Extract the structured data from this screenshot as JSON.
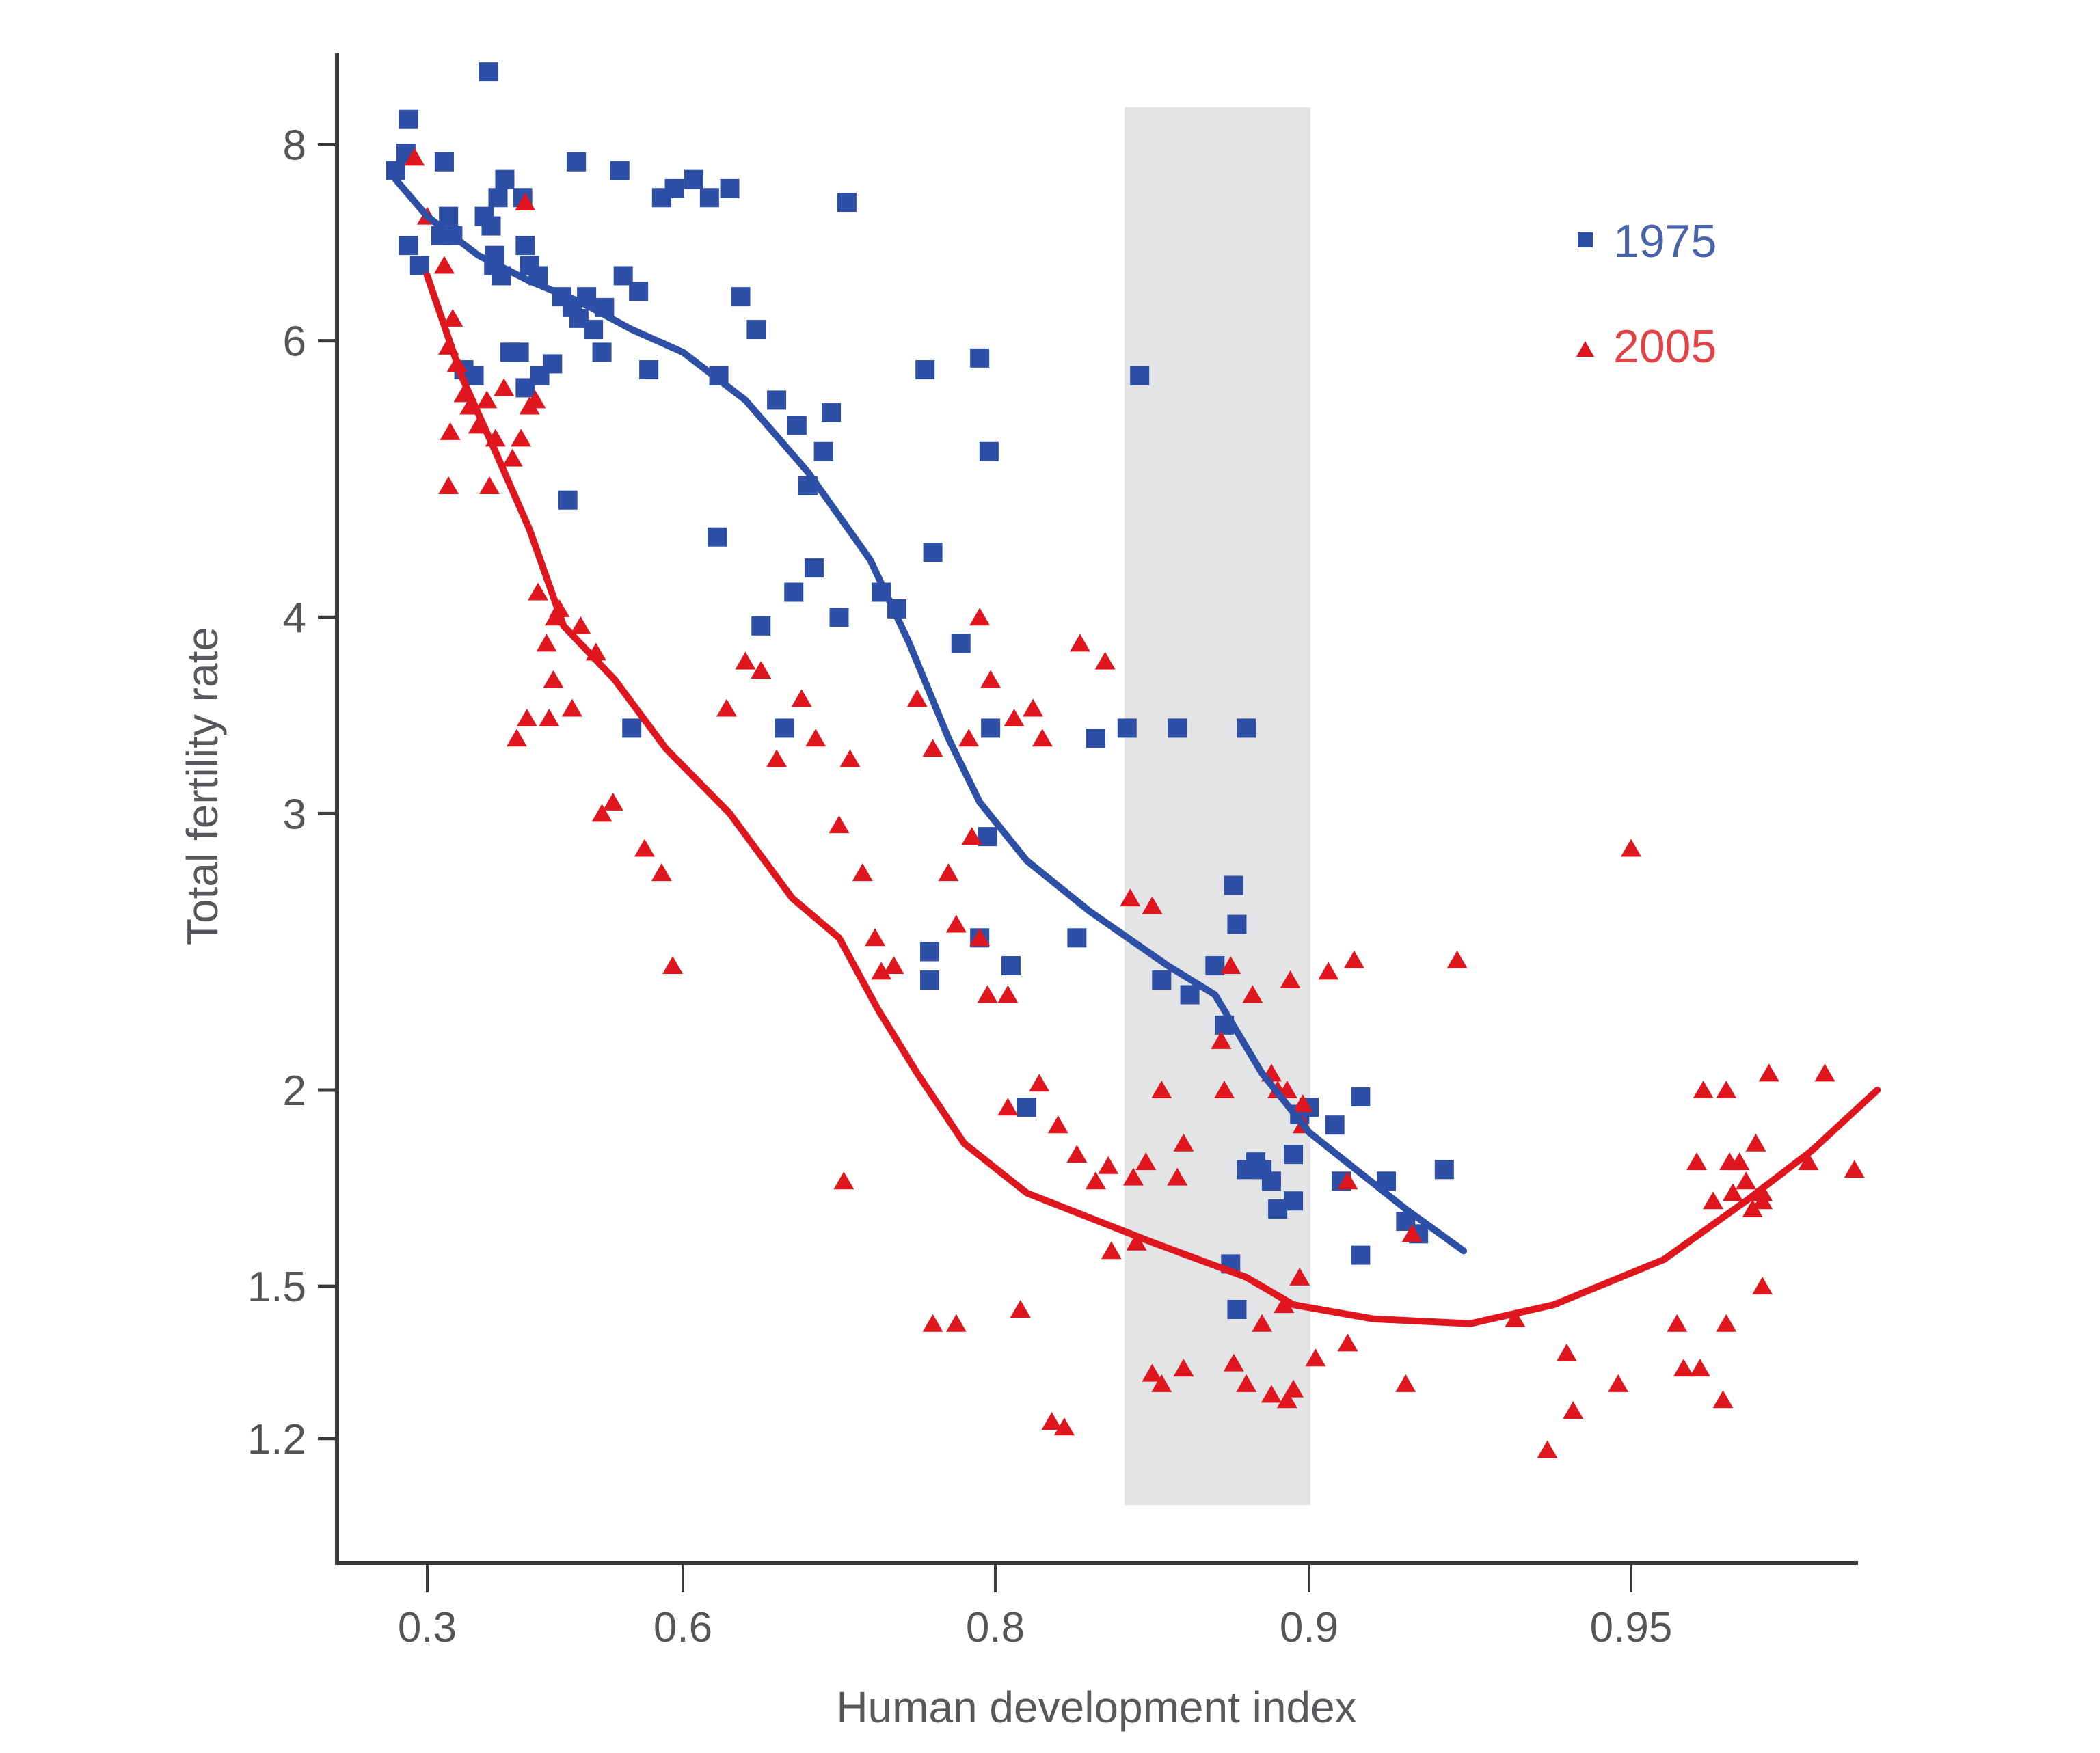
{
  "chart_data": {
    "type": "scatter",
    "title": "",
    "xlabel": "Human development index",
    "ylabel": "Total fertility rate",
    "x_ticks": [
      0.3,
      0.6,
      0.8,
      0.9,
      0.95
    ],
    "x_tick_labels": [
      "0.3",
      "0.6",
      "0.8",
      "0.9",
      "0.95"
    ],
    "x_scale": "custom (non-uniform tick spacing)",
    "y_ticks": [
      1.2,
      1.5,
      2,
      3,
      4,
      6,
      8
    ],
    "y_tick_labels": [
      "1.2",
      "1.5",
      "2",
      "3",
      "4",
      "6",
      "8"
    ],
    "y_scale": "log",
    "ylim": [
      1.0,
      9.0
    ],
    "grid": false,
    "legend_position": "top-right",
    "shaded_band": {
      "x_range": [
        0.85,
        0.9
      ],
      "y_range": [
        1.1,
        8.8
      ],
      "color": "#e3e4e6"
    },
    "series": [
      {
        "name": "1975",
        "marker": "square",
        "color": "#2d4fa6",
        "points": [
          [
            0.263,
            7.7
          ],
          [
            0.278,
            8.3
          ],
          [
            0.275,
            7.9
          ],
          [
            0.278,
            6.9
          ],
          [
            0.291,
            6.7
          ],
          [
            0.32,
            7.8
          ],
          [
            0.325,
            7.2
          ],
          [
            0.316,
            7.0
          ],
          [
            0.372,
            8.9
          ],
          [
            0.33,
            7.0
          ],
          [
            0.343,
            5.75
          ],
          [
            0.355,
            5.7
          ],
          [
            0.367,
            7.2
          ],
          [
            0.375,
            7.1
          ],
          [
            0.379,
            6.8
          ],
          [
            0.383,
            7.4
          ],
          [
            0.391,
            7.6
          ],
          [
            0.412,
            7.4
          ],
          [
            0.378,
            6.7
          ],
          [
            0.387,
            6.6
          ],
          [
            0.397,
            5.9
          ],
          [
            0.408,
            5.9
          ],
          [
            0.415,
            6.9
          ],
          [
            0.42,
            6.7
          ],
          [
            0.43,
            6.6
          ],
          [
            0.415,
            5.6
          ],
          [
            0.432,
            5.7
          ],
          [
            0.447,
            5.8
          ],
          [
            0.475,
            7.8
          ],
          [
            0.458,
            6.4
          ],
          [
            0.47,
            6.3
          ],
          [
            0.478,
            6.2
          ],
          [
            0.487,
            6.4
          ],
          [
            0.495,
            6.1
          ],
          [
            0.508,
            6.3
          ],
          [
            0.526,
            7.7
          ],
          [
            0.505,
            5.9
          ],
          [
            0.53,
            6.6
          ],
          [
            0.548,
            6.45
          ],
          [
            0.56,
            5.75
          ],
          [
            0.575,
            7.4
          ],
          [
            0.59,
            7.5
          ],
          [
            0.607,
            7.6
          ],
          [
            0.617,
            7.4
          ],
          [
            0.63,
            7.5
          ],
          [
            0.623,
            5.7
          ],
          [
            0.637,
            6.4
          ],
          [
            0.647,
            6.1
          ],
          [
            0.66,
            5.5
          ],
          [
            0.673,
            5.3
          ],
          [
            0.69,
            5.1
          ],
          [
            0.695,
            5.4
          ],
          [
            0.68,
            4.85
          ],
          [
            0.705,
            7.35
          ],
          [
            0.622,
            4.5
          ],
          [
            0.465,
            4.75
          ],
          [
            0.65,
            3.95
          ],
          [
            0.671,
            4.15
          ],
          [
            0.684,
            4.3
          ],
          [
            0.7,
            4.0
          ],
          [
            0.727,
            4.15
          ],
          [
            0.737,
            4.05
          ],
          [
            0.76,
            4.4
          ],
          [
            0.755,
            5.75
          ],
          [
            0.79,
            5.85
          ],
          [
            0.796,
            5.1
          ],
          [
            0.846,
            5.7
          ],
          [
            0.54,
            3.4
          ],
          [
            0.665,
            3.4
          ],
          [
            0.778,
            3.85
          ],
          [
            0.797,
            3.4
          ],
          [
            0.795,
            2.9
          ],
          [
            0.79,
            2.5
          ],
          [
            0.758,
            2.35
          ],
          [
            0.758,
            2.45
          ],
          [
            0.805,
            2.4
          ],
          [
            0.826,
            2.5
          ],
          [
            0.81,
            1.95
          ],
          [
            0.832,
            3.35
          ],
          [
            0.842,
            3.4
          ],
          [
            0.858,
            3.4
          ],
          [
            0.88,
            3.4
          ],
          [
            0.87,
            2.4
          ],
          [
            0.873,
            2.2
          ],
          [
            0.876,
            2.7
          ],
          [
            0.877,
            2.55
          ],
          [
            0.853,
            2.35
          ],
          [
            0.862,
            2.3
          ],
          [
            0.885,
            1.78
          ],
          [
            0.888,
            1.75
          ],
          [
            0.89,
            1.68
          ],
          [
            0.895,
            1.82
          ],
          [
            0.895,
            1.7
          ],
          [
            0.88,
            1.78
          ],
          [
            0.883,
            1.8
          ],
          [
            0.875,
            1.55
          ],
          [
            0.877,
            1.45
          ],
          [
            0.897,
            1.93
          ],
          [
            0.9,
            1.95
          ],
          [
            0.904,
            1.9
          ],
          [
            0.908,
            1.98
          ],
          [
            0.905,
            1.75
          ],
          [
            0.912,
            1.75
          ],
          [
            0.915,
            1.65
          ],
          [
            0.917,
            1.62
          ],
          [
            0.921,
            1.78
          ],
          [
            0.908,
            1.57
          ]
        ],
        "trend": [
          [
            0.263,
            7.6
          ],
          [
            0.3,
            7.2
          ],
          [
            0.36,
            6.8
          ],
          [
            0.42,
            6.55
          ],
          [
            0.48,
            6.35
          ],
          [
            0.54,
            6.1
          ],
          [
            0.6,
            5.9
          ],
          [
            0.64,
            5.5
          ],
          [
            0.68,
            4.95
          ],
          [
            0.72,
            4.35
          ],
          [
            0.745,
            3.85
          ],
          [
            0.77,
            3.35
          ],
          [
            0.79,
            3.05
          ],
          [
            0.81,
            2.8
          ],
          [
            0.83,
            2.6
          ],
          [
            0.855,
            2.4
          ],
          [
            0.87,
            2.3
          ],
          [
            0.885,
            2.05
          ],
          [
            0.9,
            1.88
          ],
          [
            0.915,
            1.68
          ],
          [
            0.924,
            1.58
          ]
        ]
      },
      {
        "name": "2005",
        "marker": "triangle",
        "color": "#e0161e",
        "points": [
          [
            0.285,
            7.85
          ],
          [
            0.3,
            7.2
          ],
          [
            0.32,
            6.7
          ],
          [
            0.33,
            6.2
          ],
          [
            0.325,
            5.95
          ],
          [
            0.335,
            5.8
          ],
          [
            0.343,
            5.55
          ],
          [
            0.327,
            5.25
          ],
          [
            0.325,
            4.85
          ],
          [
            0.373,
            4.85
          ],
          [
            0.35,
            5.45
          ],
          [
            0.36,
            5.3
          ],
          [
            0.37,
            5.5
          ],
          [
            0.38,
            5.2
          ],
          [
            0.39,
            5.6
          ],
          [
            0.4,
            5.05
          ],
          [
            0.41,
            5.2
          ],
          [
            0.415,
            7.35
          ],
          [
            0.42,
            5.45
          ],
          [
            0.427,
            5.5
          ],
          [
            0.43,
            4.15
          ],
          [
            0.44,
            3.85
          ],
          [
            0.45,
            4.0
          ],
          [
            0.455,
            4.05
          ],
          [
            0.448,
            3.65
          ],
          [
            0.47,
            3.5
          ],
          [
            0.48,
            3.95
          ],
          [
            0.405,
            3.35
          ],
          [
            0.417,
            3.45
          ],
          [
            0.443,
            3.45
          ],
          [
            0.498,
            3.8
          ],
          [
            0.505,
            3.0
          ],
          [
            0.518,
            3.05
          ],
          [
            0.555,
            2.85
          ],
          [
            0.575,
            2.75
          ],
          [
            0.588,
            2.4
          ],
          [
            0.628,
            3.5
          ],
          [
            0.64,
            3.75
          ],
          [
            0.65,
            3.7
          ],
          [
            0.66,
            3.25
          ],
          [
            0.676,
            3.55
          ],
          [
            0.685,
            3.35
          ],
          [
            0.7,
            2.95
          ],
          [
            0.707,
            3.25
          ],
          [
            0.715,
            2.75
          ],
          [
            0.723,
            2.5
          ],
          [
            0.727,
            2.38
          ],
          [
            0.735,
            2.4
          ],
          [
            0.75,
            3.55
          ],
          [
            0.76,
            3.3
          ],
          [
            0.77,
            2.75
          ],
          [
            0.775,
            2.55
          ],
          [
            0.785,
            2.9
          ],
          [
            0.79,
            2.5
          ],
          [
            0.795,
            2.3
          ],
          [
            0.804,
            2.3
          ],
          [
            0.806,
            3.45
          ],
          [
            0.783,
            3.35
          ],
          [
            0.79,
            4.0
          ],
          [
            0.797,
            3.65
          ],
          [
            0.812,
            3.5
          ],
          [
            0.815,
            3.35
          ],
          [
            0.835,
            3.75
          ],
          [
            0.827,
            3.85
          ],
          [
            0.843,
            2.65
          ],
          [
            0.85,
            2.62
          ],
          [
            0.814,
            2.02
          ],
          [
            0.804,
            1.95
          ],
          [
            0.82,
            1.9
          ],
          [
            0.826,
            1.82
          ],
          [
            0.836,
            1.79
          ],
          [
            0.844,
            1.76
          ],
          [
            0.848,
            1.8
          ],
          [
            0.853,
            2.0
          ],
          [
            0.858,
            1.76
          ],
          [
            0.832,
            1.75
          ],
          [
            0.86,
            1.85
          ],
          [
            0.872,
            2.15
          ],
          [
            0.882,
            2.3
          ],
          [
            0.888,
            2.05
          ],
          [
            0.89,
            2.0
          ],
          [
            0.893,
            2.0
          ],
          [
            0.903,
            2.38
          ],
          [
            0.898,
            1.9
          ],
          [
            0.76,
            1.42
          ],
          [
            0.775,
            1.42
          ],
          [
            0.808,
            1.45
          ],
          [
            0.818,
            1.23
          ],
          [
            0.822,
            1.22
          ],
          [
            0.837,
            1.58
          ],
          [
            0.845,
            1.6
          ],
          [
            0.85,
            1.32
          ],
          [
            0.853,
            1.3
          ],
          [
            0.86,
            1.33
          ],
          [
            0.876,
            1.34
          ],
          [
            0.88,
            1.3
          ],
          [
            0.885,
            1.42
          ],
          [
            0.888,
            1.28
          ],
          [
            0.893,
            1.27
          ],
          [
            0.897,
            1.52
          ],
          [
            0.901,
            1.35
          ],
          [
            0.906,
            1.38
          ],
          [
            0.915,
            1.3
          ],
          [
            0.895,
            1.29
          ],
          [
            0.892,
            1.46
          ],
          [
            0.873,
            2.0
          ],
          [
            0.875,
            2.4
          ],
          [
            0.894,
            2.35
          ],
          [
            0.907,
            2.42
          ],
          [
            0.923,
            2.42
          ],
          [
            0.703,
            1.75
          ],
          [
            0.898,
            1.96
          ],
          [
            0.906,
            1.75
          ],
          [
            0.916,
            1.62
          ],
          [
            0.932,
            1.43
          ],
          [
            0.94,
            1.36
          ],
          [
            0.95,
            2.85
          ],
          [
            0.941,
            1.25
          ],
          [
            0.948,
            1.3
          ],
          [
            0.937,
            1.18
          ],
          [
            0.964,
            1.42
          ],
          [
            0.966,
            1.33
          ],
          [
            0.971,
            1.33
          ],
          [
            0.975,
            1.7
          ],
          [
            0.97,
            1.8
          ],
          [
            0.972,
            2.0
          ],
          [
            0.979,
            2.0
          ],
          [
            0.98,
            1.8
          ],
          [
            0.981,
            1.72
          ],
          [
            0.983,
            1.8
          ],
          [
            0.985,
            1.75
          ],
          [
            0.988,
            1.85
          ],
          [
            0.99,
            1.7
          ],
          [
            0.992,
            2.05
          ],
          [
            0.99,
            1.72
          ],
          [
            0.987,
            1.68
          ],
          [
            0.99,
            1.5
          ],
          [
            0.979,
            1.42
          ],
          [
            0.978,
            1.27
          ],
          [
            1.004,
            1.8
          ],
          [
            1.018,
            1.78
          ],
          [
            1.009,
            2.05
          ]
        ],
        "trend": [
          [
            0.3,
            6.6
          ],
          [
            0.34,
            5.7
          ],
          [
            0.38,
            5.1
          ],
          [
            0.42,
            4.55
          ],
          [
            0.46,
            3.95
          ],
          [
            0.52,
            3.65
          ],
          [
            0.58,
            3.3
          ],
          [
            0.63,
            3.0
          ],
          [
            0.67,
            2.65
          ],
          [
            0.7,
            2.5
          ],
          [
            0.725,
            2.25
          ],
          [
            0.75,
            2.05
          ],
          [
            0.78,
            1.85
          ],
          [
            0.81,
            1.72
          ],
          [
            0.85,
            1.6
          ],
          [
            0.88,
            1.52
          ],
          [
            0.895,
            1.46
          ],
          [
            0.91,
            1.43
          ],
          [
            0.925,
            1.42
          ],
          [
            0.938,
            1.46
          ],
          [
            0.96,
            1.56
          ],
          [
            0.985,
            1.7
          ],
          [
            1.005,
            1.83
          ],
          [
            1.025,
            2.0
          ]
        ]
      }
    ]
  },
  "legend": {
    "items": [
      {
        "label": "1975",
        "color": "#2d4fa6",
        "marker": "square"
      },
      {
        "label": "2005",
        "color": "#e0161e",
        "marker": "triangle"
      }
    ]
  }
}
